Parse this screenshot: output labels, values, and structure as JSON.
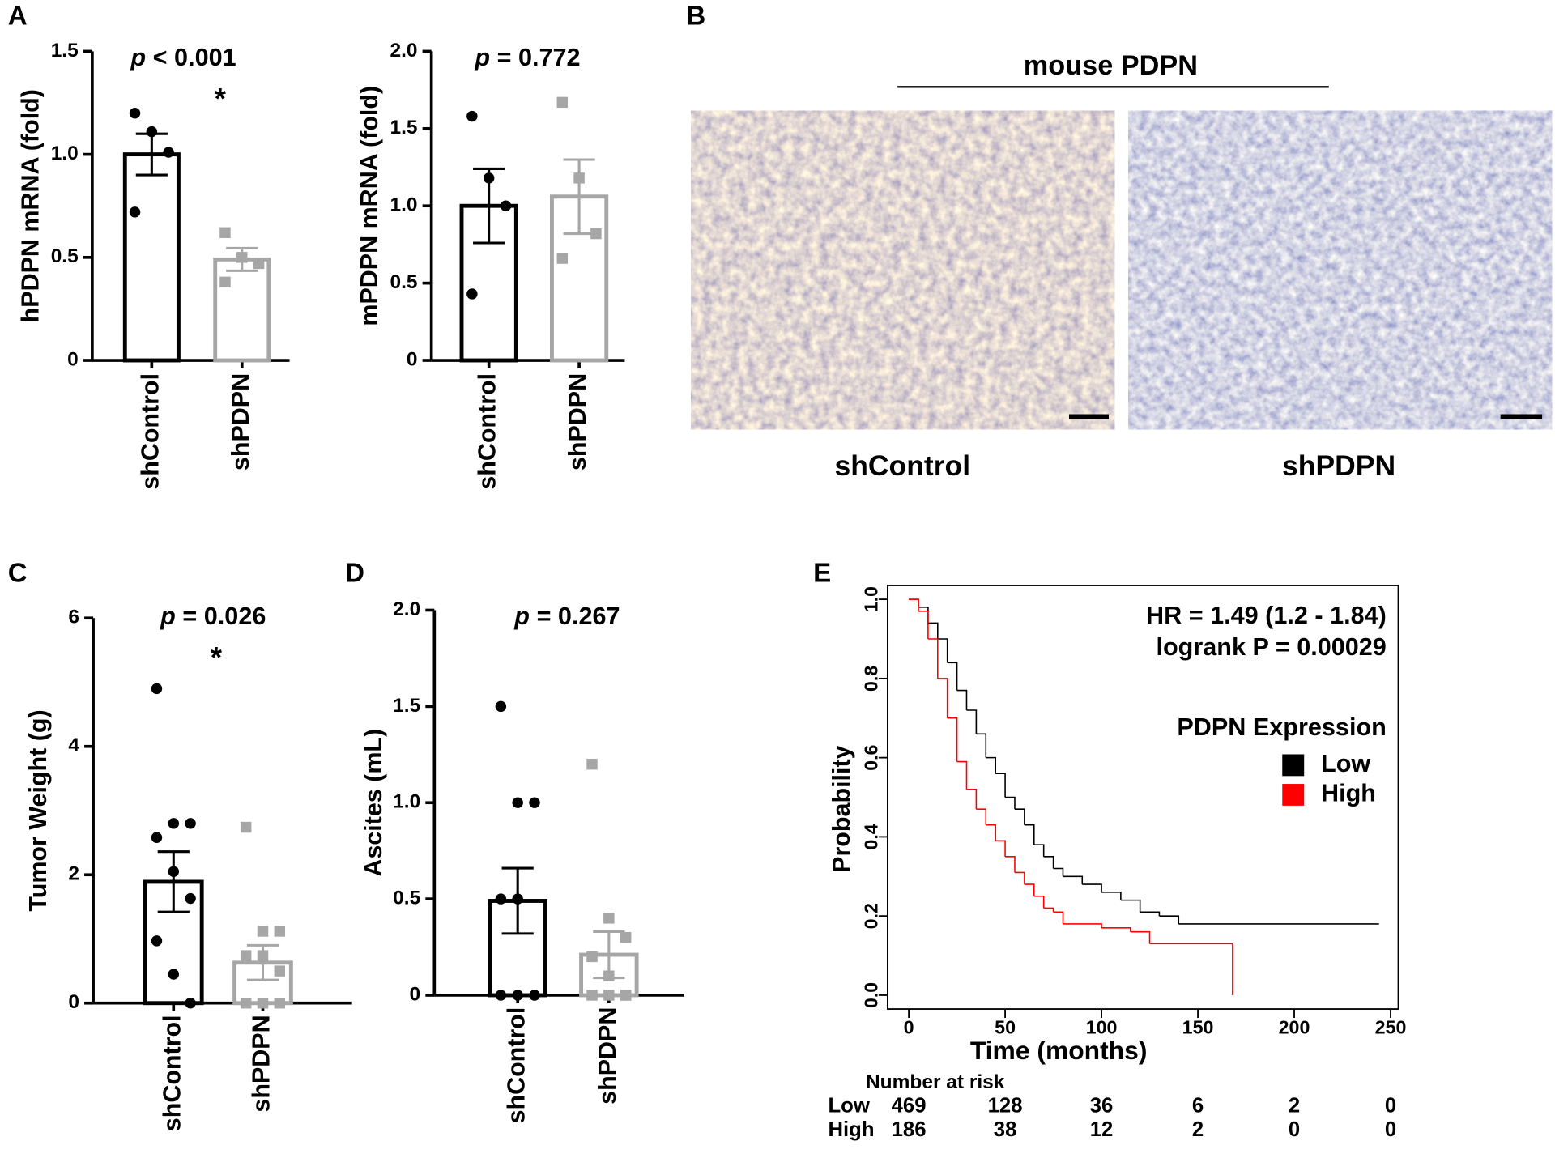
{
  "panel_labels": [
    "A",
    "B",
    "C",
    "D",
    "E"
  ],
  "panel_b": {
    "title": "mouse PDPN",
    "images": [
      "shControl",
      "shPDPN"
    ]
  },
  "chart_data": [
    {
      "type": "bar",
      "ylabel": "hPDPN mRNA (fold)",
      "stat": {
        "symbol": "p",
        "text": "< 0.001"
      },
      "significance": "*",
      "categories": [
        "shControl",
        "shPDPN"
      ],
      "colors": [
        "#000000",
        "#a6a6a6"
      ],
      "values": [
        1.0,
        0.49
      ],
      "errors": [
        0.1,
        0.055
      ],
      "points": [
        [
          1.2,
          1.11,
          1.01,
          0.72
        ],
        [
          0.62,
          0.5,
          0.47,
          0.38
        ]
      ],
      "ylim": [
        0,
        1.5
      ],
      "yticks": [
        0,
        0.5,
        {
          "value": 1,
          "label": "1.0"
        },
        1.5
      ]
    },
    {
      "type": "bar",
      "ylabel": "mPDPN mRNA (fold)",
      "stat": {
        "symbol": "p",
        "text": "= 0.772"
      },
      "categories": [
        "shControl",
        "shPDPN"
      ],
      "colors": [
        "#000000",
        "#a6a6a6"
      ],
      "values": [
        1.0,
        1.06
      ],
      "errors": [
        0.24,
        0.24
      ],
      "points": [
        [
          1.58,
          1.18,
          1.0,
          0.43
        ],
        [
          1.67,
          1.18,
          0.82,
          0.66
        ]
      ],
      "ylim": [
        0,
        2
      ],
      "yticks": [
        0,
        0.5,
        {
          "value": 1,
          "label": "1.0"
        },
        1.5,
        {
          "value": 2,
          "label": "2.0"
        }
      ]
    },
    {
      "type": "bar",
      "ylabel": "Tumor Weight (g)",
      "stat": {
        "symbol": "p",
        "text": "= 0.026"
      },
      "significance": "*",
      "categories": [
        "shControl",
        "shPDPN"
      ],
      "colors": [
        "#000000",
        "#a6a6a6"
      ],
      "values": [
        1.89,
        0.63
      ],
      "errors": [
        0.47,
        0.27
      ],
      "points": [
        [
          4.9,
          2.8,
          2.8,
          2.58,
          2.05,
          1.63,
          0.97,
          0.45,
          0
        ],
        [
          2.74,
          1.12,
          1.12,
          0.74,
          0.74,
          0.5,
          0,
          0,
          0
        ]
      ],
      "ylim": [
        0,
        6
      ],
      "yticks": [
        0,
        2,
        4,
        6
      ]
    },
    {
      "type": "bar",
      "ylabel": "Ascites (mL)",
      "stat": {
        "symbol": "p",
        "text": "= 0.267"
      },
      "categories": [
        "shControl",
        "shPDPN"
      ],
      "colors": [
        "#000000",
        "#a6a6a6"
      ],
      "values": [
        0.49,
        0.21
      ],
      "errors": [
        0.17,
        0.12
      ],
      "points": [
        [
          1.5,
          1.0,
          1.0,
          0.5,
          0.5,
          0,
          0,
          0,
          0
        ],
        [
          1.2,
          0.4,
          0.3,
          0.2,
          0.1,
          0,
          0,
          0,
          0
        ]
      ],
      "ylim": [
        0,
        2
      ],
      "yticks": [
        0,
        0.5,
        {
          "value": 1,
          "label": "1.0"
        },
        1.5,
        {
          "value": 2,
          "label": "2.0"
        }
      ]
    },
    {
      "type": "line",
      "xlabel": "Time (months)",
      "ylabel": "Probability",
      "annotations": [
        "HR = 1.49 (1.2 - 1.84)",
        "logrank P = 0.00029"
      ],
      "legend_title": "PDPN Expression",
      "legend": "upper right",
      "series": [
        {
          "name": "Low",
          "color": "#000000",
          "x": [
            0,
            5,
            10,
            15,
            20,
            25,
            30,
            35,
            40,
            45,
            50,
            55,
            60,
            65,
            70,
            75,
            80,
            90,
            100,
            110,
            120,
            130,
            140,
            244
          ],
          "values": [
            1,
            0.98,
            0.94,
            0.9,
            0.84,
            0.77,
            0.72,
            0.66,
            0.6,
            0.56,
            0.5,
            0.47,
            0.43,
            0.38,
            0.35,
            0.32,
            0.3,
            0.28,
            0.26,
            0.24,
            0.21,
            0.2,
            0.18,
            0.18
          ]
        },
        {
          "name": "High",
          "color": "#ff0000",
          "x": [
            0,
            5,
            10,
            15,
            20,
            25,
            30,
            35,
            40,
            45,
            50,
            55,
            60,
            65,
            70,
            75,
            80,
            100,
            115,
            125,
            168,
            168
          ],
          "values": [
            1,
            0.97,
            0.9,
            0.8,
            0.7,
            0.59,
            0.52,
            0.47,
            0.43,
            0.39,
            0.35,
            0.31,
            0.28,
            0.25,
            0.22,
            0.21,
            0.18,
            0.17,
            0.16,
            0.13,
            0.13,
            0
          ]
        }
      ],
      "xlim": [
        -11,
        254
      ],
      "ylim": [
        -0.035,
        1.035
      ],
      "xticks": [
        0,
        50,
        100,
        150,
        200,
        250
      ],
      "yticks": [
        {
          "value": 0,
          "label": "0.0"
        },
        0.2,
        0.4,
        0.6,
        0.8,
        {
          "value": 1,
          "label": "1.0"
        }
      ],
      "risk_table": {
        "title": "Number at risk",
        "rows": [
          {
            "name": "Low",
            "color": "#000000",
            "values": [
              469,
              128,
              36,
              6,
              2,
              0
            ]
          },
          {
            "name": "High",
            "color": "#ff0000",
            "values": [
              186,
              38,
              12,
              2,
              0,
              0
            ]
          }
        ]
      }
    }
  ]
}
